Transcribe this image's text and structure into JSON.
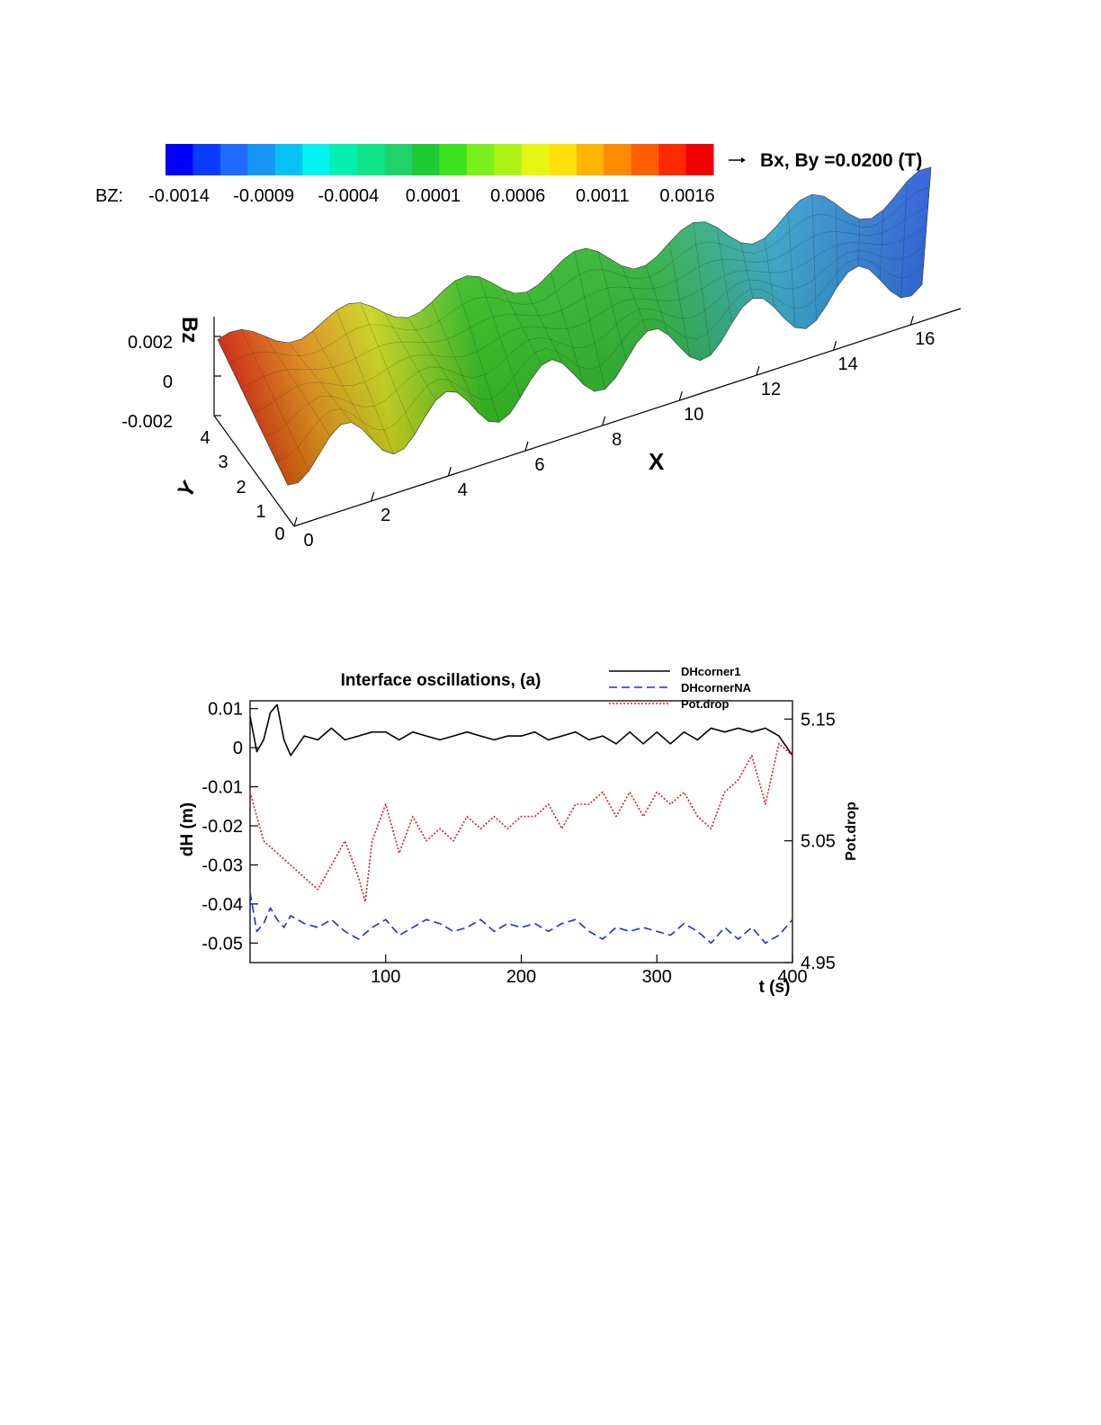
{
  "colorbar": {
    "variable_label": "BZ:",
    "tick_labels": [
      "-0.0014",
      "-0.0009",
      "-0.0004",
      "0.0001",
      "0.0006",
      "0.0011",
      "0.0016"
    ],
    "colors": [
      "#0000ff",
      "#0a3cff",
      "#1f6bff",
      "#1596f5",
      "#05c3f5",
      "#00f2f2",
      "#00f0b0",
      "#11e58c",
      "#1fd36a",
      "#1dcc35",
      "#3ce41e",
      "#7af01a",
      "#aef316",
      "#e7f512",
      "#ffe10a",
      "#ffb400",
      "#ff8a00",
      "#ff5f00",
      "#ff2a00",
      "#f00000"
    ],
    "vector_reference_label": "Bx, By =0.0200 (T)"
  },
  "plot3d": {
    "z_axis_label": "Bz",
    "z_ticks": [
      "0.002",
      "0",
      "-0.002"
    ],
    "y_axis_label": "Y",
    "y_ticks": [
      "0",
      "1",
      "2",
      "3",
      "4"
    ],
    "x_axis_label": "X",
    "x_ticks": [
      "0",
      "2",
      "4",
      "6",
      "8",
      "10",
      "12",
      "14",
      "16"
    ],
    "surface_colors": {
      "red": "#e11a0a",
      "orange": "#f39a1a",
      "yellow": "#d9e51c",
      "green": "#33c41c",
      "cyan": "#2aa3c9",
      "blue": "#1a4fd6"
    }
  },
  "chart_data": {
    "type": "line",
    "title": "Interface oscillations,  (a)",
    "xlabel": "t (s)",
    "ylabel": "dH (m)",
    "ylabel_right": "Pot.drop",
    "xlim": [
      0,
      400
    ],
    "ylim": [
      -0.055,
      0.012
    ],
    "ylim_right": [
      4.95,
      5.165
    ],
    "x_ticks": [
      "100",
      "200",
      "300",
      "400"
    ],
    "y_ticks": [
      "0.01",
      "0",
      "-0.01",
      "-0.02",
      "-0.03",
      "-0.04",
      "-0.05"
    ],
    "y_right_ticks": [
      "5.15",
      "5.05",
      "4.95"
    ],
    "legend_position": "top-right",
    "series": [
      {
        "name": "DHcorner1",
        "axis": "left",
        "style": "solid",
        "color": "#000000",
        "x": [
          0,
          5,
          10,
          15,
          20,
          25,
          30,
          40,
          50,
          60,
          70,
          80,
          90,
          100,
          110,
          120,
          130,
          140,
          150,
          160,
          170,
          180,
          190,
          200,
          210,
          220,
          230,
          240,
          250,
          260,
          270,
          280,
          290,
          300,
          310,
          320,
          330,
          340,
          350,
          360,
          370,
          380,
          390,
          400
        ],
        "y": [
          0.008,
          -0.001,
          0.002,
          0.009,
          0.011,
          0.002,
          -0.002,
          0.003,
          0.002,
          0.005,
          0.002,
          0.003,
          0.004,
          0.004,
          0.002,
          0.004,
          0.003,
          0.002,
          0.003,
          0.004,
          0.003,
          0.002,
          0.003,
          0.003,
          0.004,
          0.002,
          0.003,
          0.004,
          0.002,
          0.003,
          0.001,
          0.004,
          0.001,
          0.004,
          0.001,
          0.004,
          0.002,
          0.005,
          0.004,
          0.005,
          0.004,
          0.005,
          0.003,
          -0.002
        ]
      },
      {
        "name": "DHcornerNA",
        "axis": "left",
        "style": "dashed",
        "color": "#1a2ee6",
        "x": [
          0,
          5,
          10,
          15,
          20,
          25,
          30,
          40,
          50,
          60,
          70,
          80,
          90,
          100,
          110,
          120,
          130,
          140,
          150,
          160,
          170,
          180,
          190,
          200,
          210,
          220,
          230,
          240,
          250,
          260,
          270,
          280,
          290,
          300,
          310,
          320,
          330,
          340,
          350,
          360,
          370,
          380,
          390,
          400
        ],
        "y": [
          -0.037,
          -0.047,
          -0.045,
          -0.041,
          -0.044,
          -0.046,
          -0.043,
          -0.045,
          -0.046,
          -0.044,
          -0.047,
          -0.049,
          -0.046,
          -0.044,
          -0.048,
          -0.046,
          -0.044,
          -0.045,
          -0.047,
          -0.046,
          -0.044,
          -0.047,
          -0.045,
          -0.046,
          -0.045,
          -0.047,
          -0.045,
          -0.044,
          -0.047,
          -0.049,
          -0.046,
          -0.047,
          -0.046,
          -0.047,
          -0.048,
          -0.045,
          -0.047,
          -0.05,
          -0.046,
          -0.049,
          -0.046,
          -0.05,
          -0.048,
          -0.044
        ]
      },
      {
        "name": "Pot.drop",
        "axis": "right",
        "style": "dotted",
        "color": "#d42020",
        "x": [
          0,
          5,
          10,
          20,
          30,
          40,
          50,
          60,
          70,
          80,
          85,
          90,
          100,
          110,
          120,
          130,
          140,
          150,
          160,
          170,
          180,
          190,
          200,
          210,
          220,
          230,
          240,
          250,
          260,
          270,
          280,
          290,
          300,
          310,
          320,
          330,
          340,
          350,
          360,
          370,
          380,
          390,
          400
        ],
        "y": [
          5.09,
          5.07,
          5.05,
          5.04,
          5.03,
          5.02,
          5.01,
          5.03,
          5.05,
          5.02,
          5.0,
          5.05,
          5.08,
          5.04,
          5.07,
          5.05,
          5.06,
          5.05,
          5.07,
          5.06,
          5.07,
          5.06,
          5.07,
          5.07,
          5.08,
          5.06,
          5.08,
          5.08,
          5.09,
          5.07,
          5.09,
          5.07,
          5.09,
          5.08,
          5.09,
          5.07,
          5.06,
          5.09,
          5.1,
          5.12,
          5.08,
          5.13,
          5.12
        ]
      }
    ]
  }
}
